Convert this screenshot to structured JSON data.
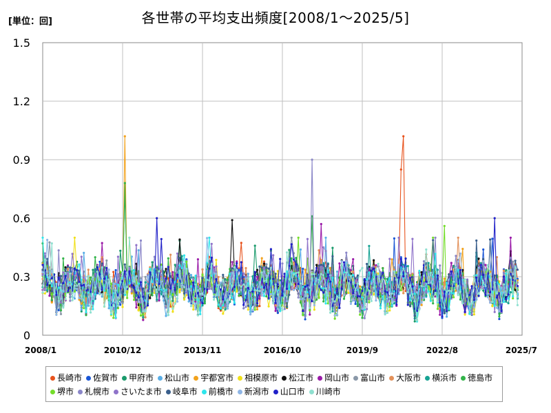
{
  "chart_data": {
    "type": "line",
    "title": "各世帯の平均支出頻度[2008/1～2025/5]",
    "unit_label": "[単位：回]",
    "ylim": [
      0,
      1.5
    ],
    "y_ticks": [
      "0",
      "0.3",
      "0.6",
      "0.9",
      "1.2",
      "1.5"
    ],
    "y_tick_values": [
      0,
      0.3,
      0.6,
      0.9,
      1.2,
      1.5
    ],
    "x_ticks": [
      "2008/1",
      "2010/12",
      "2013/11",
      "2016/10",
      "2019/9",
      "2022/8",
      "2025/7"
    ],
    "x_tick_index": [
      0,
      35,
      70,
      105,
      140,
      175,
      210
    ],
    "x_range": [
      "2008/1",
      "2025/5"
    ],
    "num_points": 209,
    "grid": true,
    "legend_position": "bottom",
    "series": [
      {
        "name": "長崎市",
        "color": "#e8531d",
        "base": 0.25,
        "spikes": [
          [
            158,
            1.02
          ],
          [
            157,
            0.85
          ]
        ]
      },
      {
        "name": "佐賀市",
        "color": "#1a56d6",
        "base": 0.24,
        "spikes": []
      },
      {
        "name": "甲府市",
        "color": "#1a9a6b",
        "base": 0.25,
        "spikes": [
          [
            36,
            0.73
          ]
        ]
      },
      {
        "name": "松山市",
        "color": "#5aaee6",
        "base": 0.24,
        "spikes": []
      },
      {
        "name": "宇都宮市",
        "color": "#f2a21c",
        "base": 0.25,
        "spikes": [
          [
            36,
            1.02
          ]
        ]
      },
      {
        "name": "相模原市",
        "color": "#f0e01a",
        "base": 0.23,
        "spikes": []
      },
      {
        "name": "松江市",
        "color": "#111111",
        "base": 0.25,
        "spikes": [
          [
            83,
            0.59
          ]
        ]
      },
      {
        "name": "岡山市",
        "color": "#9a1aa8",
        "base": 0.25,
        "spikes": [
          [
            122,
            0.57
          ]
        ]
      },
      {
        "name": "富山市",
        "color": "#8a98a8",
        "base": 0.25,
        "spikes": []
      },
      {
        "name": "大阪市",
        "color": "#e3915a",
        "base": 0.25,
        "spikes": []
      },
      {
        "name": "横浜市",
        "color": "#17a394",
        "base": 0.24,
        "spikes": []
      },
      {
        "name": "徳島市",
        "color": "#33b44a",
        "base": 0.24,
        "spikes": [
          [
            36,
            0.78
          ],
          [
            118,
            0.61
          ]
        ]
      },
      {
        "name": "堺市",
        "color": "#74dd2a",
        "base": 0.24,
        "spikes": [
          [
            176,
            0.56
          ]
        ]
      },
      {
        "name": "札幌市",
        "color": "#8a86c8",
        "base": 0.24,
        "spikes": [
          [
            118,
            0.9
          ]
        ]
      },
      {
        "name": "さいたま市",
        "color": "#8f73c9",
        "base": 0.25,
        "spikes": []
      },
      {
        "name": "岐阜市",
        "color": "#3a5f8c",
        "base": 0.25,
        "spikes": []
      },
      {
        "name": "前橋市",
        "color": "#2ee6ec",
        "base": 0.24,
        "spikes": []
      },
      {
        "name": "新潟市",
        "color": "#8fb6e6",
        "base": 0.24,
        "spikes": []
      },
      {
        "name": "山口市",
        "color": "#2020c8",
        "base": 0.25,
        "spikes": [
          [
            50,
            0.6
          ],
          [
            198,
            0.6
          ]
        ]
      },
      {
        "name": "川崎市",
        "color": "#8fe0d0",
        "base": 0.24,
        "spikes": []
      }
    ]
  }
}
